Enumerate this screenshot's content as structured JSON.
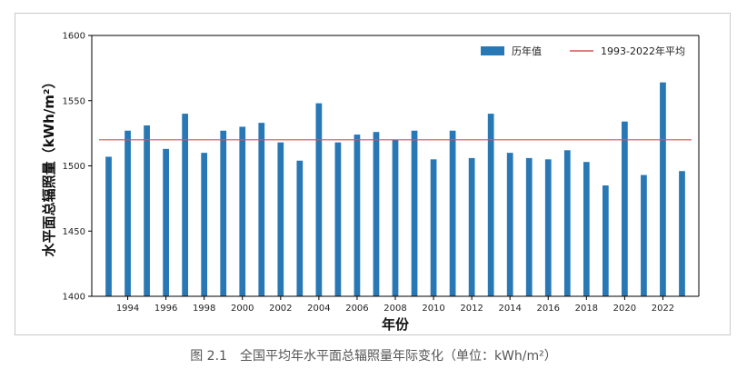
{
  "caption": "图 2.1　全国平均年水平面总辐照量年际变化（单位：kWh/m²）",
  "colors": {
    "bar": "#2878b5",
    "avg_line": "#d9534f",
    "axis": "#000000"
  },
  "chart_data": {
    "type": "bar",
    "xlabel": "年份",
    "ylabel": "水平面总辐照量（kWh/m²）",
    "ylim": [
      1400,
      1600
    ],
    "yticks": [
      1400,
      1450,
      1500,
      1550,
      1600
    ],
    "xtick_labels": [
      "1994",
      "1996",
      "1998",
      "2000",
      "2002",
      "2004",
      "2006",
      "2008",
      "2010",
      "2012",
      "2014",
      "2016",
      "2018",
      "2020",
      "2022"
    ],
    "legend_position": "top-right",
    "grid": false,
    "series": [
      {
        "name": "历年值",
        "categories": [
          1993,
          1994,
          1995,
          1996,
          1997,
          1998,
          1999,
          2000,
          2001,
          2002,
          2003,
          2004,
          2005,
          2006,
          2007,
          2008,
          2009,
          2010,
          2011,
          2012,
          2013,
          2014,
          2015,
          2016,
          2017,
          2018,
          2019,
          2020,
          2021,
          2022,
          2023
        ],
        "values": [
          1507,
          1527,
          1531,
          1513,
          1540,
          1510,
          1527,
          1530,
          1533,
          1518,
          1504,
          1548,
          1518,
          1524,
          1526,
          1520,
          1527,
          1505,
          1527,
          1506,
          1540,
          1510,
          1506,
          1505,
          1512,
          1503,
          1485,
          1534,
          1493,
          1564,
          1496
        ]
      },
      {
        "name": "1993-2022年平均",
        "type": "line",
        "value": 1520
      }
    ]
  }
}
